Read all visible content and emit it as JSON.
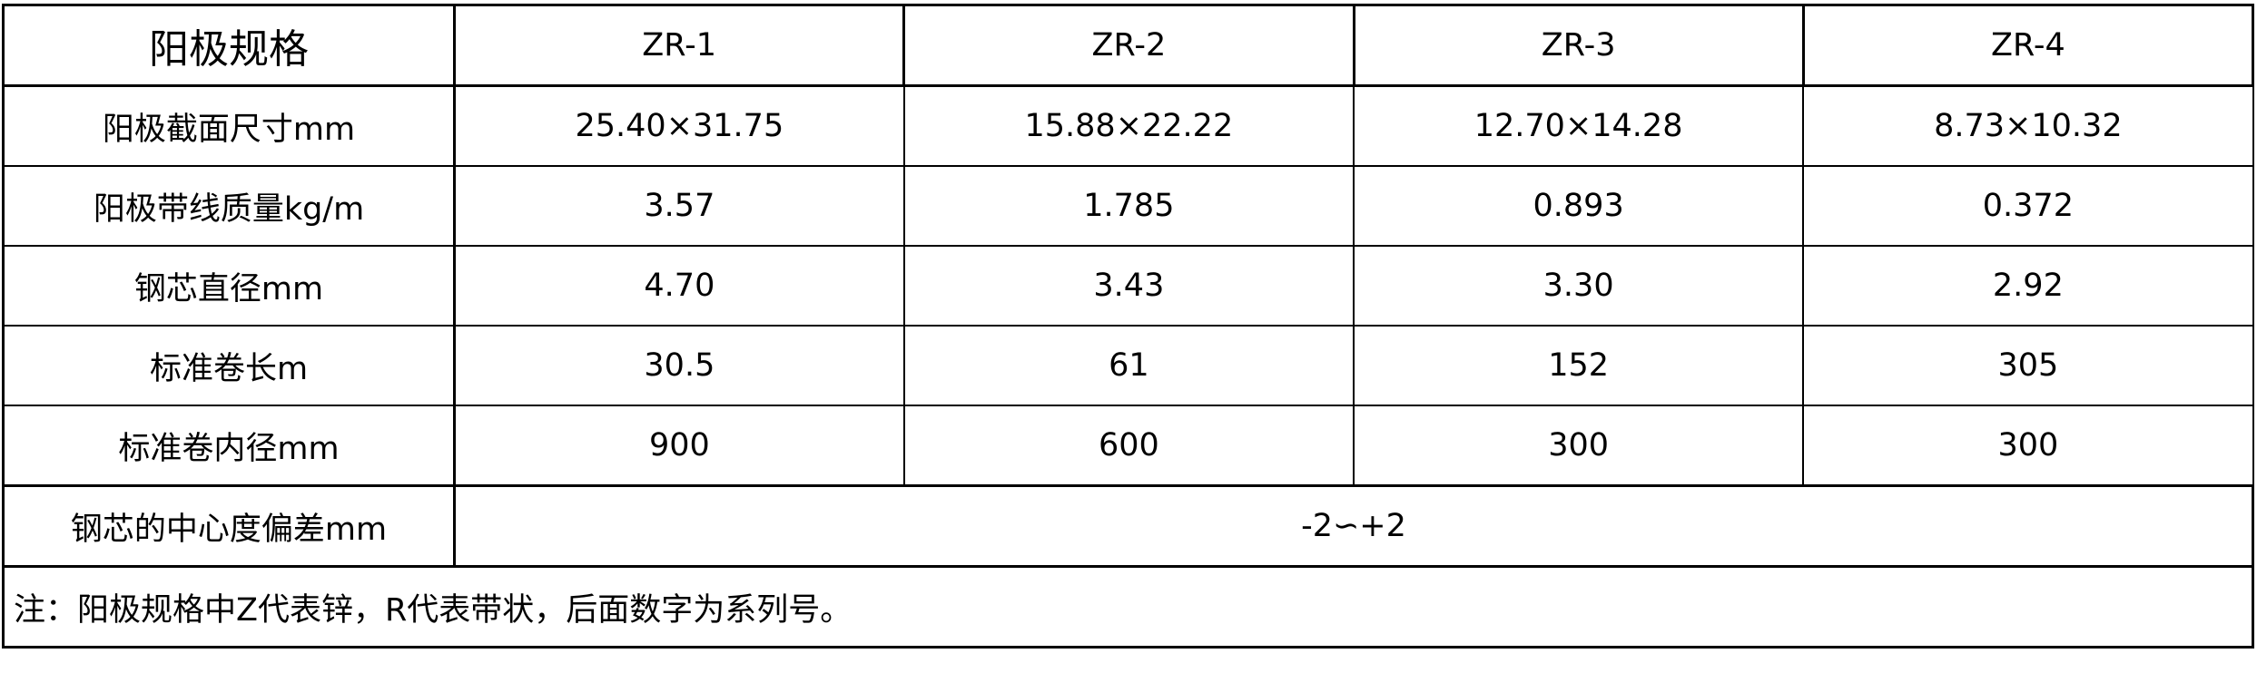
{
  "table": {
    "header": {
      "label": "阳极规格",
      "columns": [
        "ZR-1",
        "ZR-2",
        "ZR-3",
        "ZR-4"
      ]
    },
    "rows": [
      {
        "label": "阳极截面尺寸mm",
        "values": [
          "25.40×31.75",
          "15.88×22.22",
          "12.70×14.28",
          "8.73×10.32"
        ]
      },
      {
        "label": "阳极带线质量kg/m",
        "values": [
          "3.57",
          "1.785",
          "0.893",
          "0.372"
        ]
      },
      {
        "label": "钢芯直径mm",
        "values": [
          "4.70",
          "3.43",
          "3.30",
          "2.92"
        ]
      },
      {
        "label": "标准卷长m",
        "values": [
          "30.5",
          "61",
          "152",
          "305"
        ]
      },
      {
        "label": "标准卷内径mm",
        "values": [
          "900",
          "600",
          "300",
          "300"
        ]
      }
    ],
    "merged_row": {
      "label": "钢芯的中心度偏差mm",
      "value": "-2∽+2"
    },
    "note": "注：阳极规格中Z代表锌，R代表带状，后面数字为系列号。"
  }
}
